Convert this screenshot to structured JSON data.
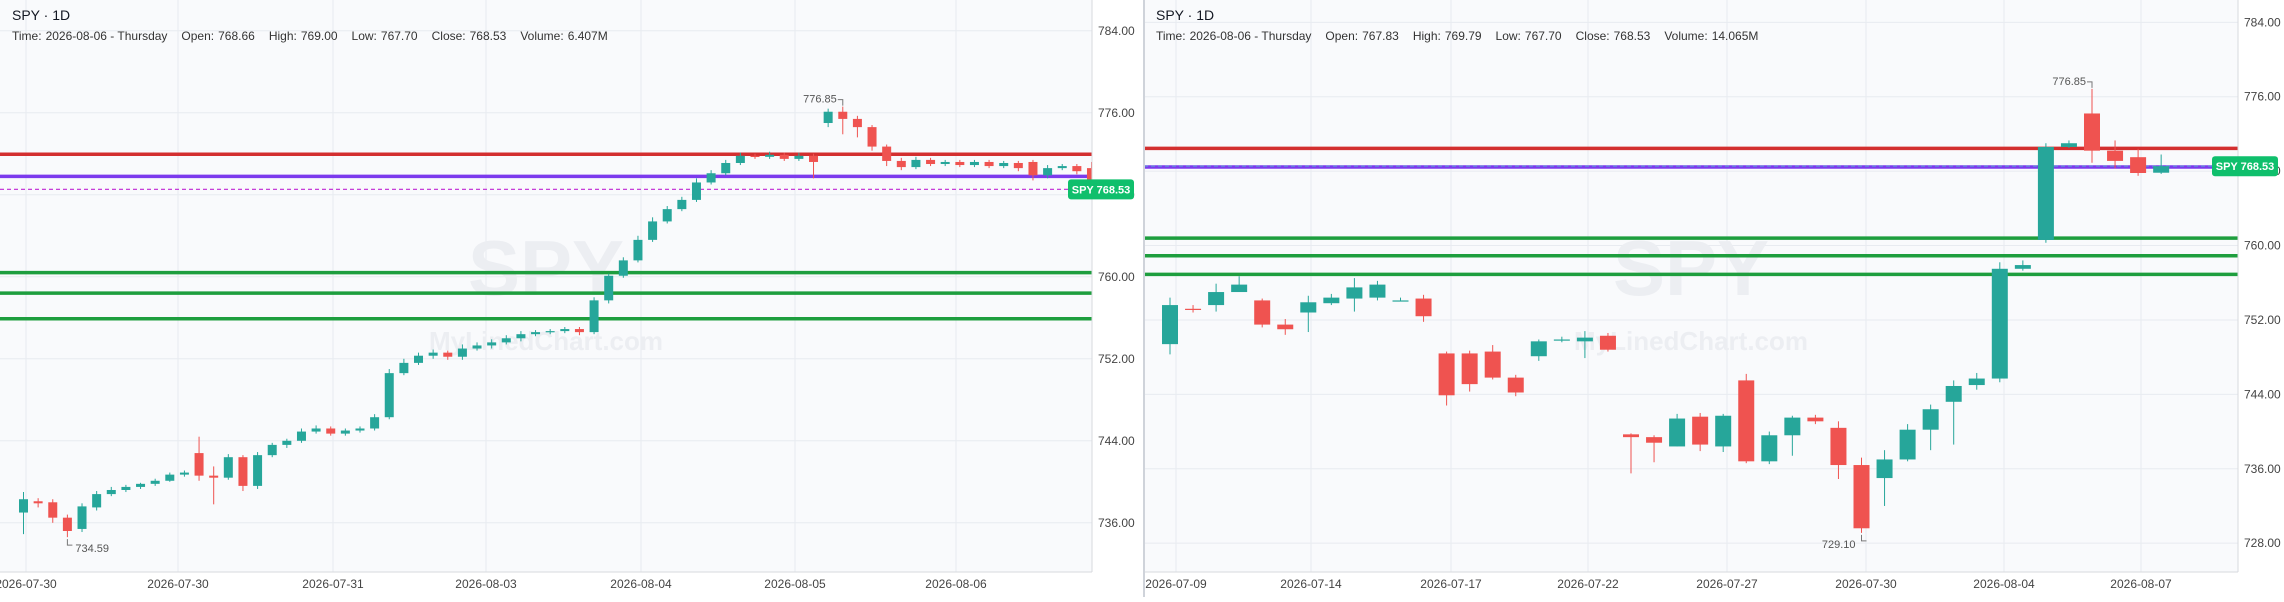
{
  "charts": [
    {
      "symbol_title": "SPY · 1D",
      "info": {
        "time_label": "Time:",
        "time": "2026-08-06 - Thursday",
        "open_label": "Open:",
        "open": "768.66",
        "high_label": "High:",
        "high": "769.00",
        "low_label": "Low:",
        "low": "767.70",
        "close_label": "Close:",
        "close": "768.53",
        "volume_label": "Volume:",
        "volume": "6.407M"
      },
      "watermark_symbol": "SPY",
      "watermark_brand": "MyLinedChart.com",
      "price_tag": "SPY 768.53",
      "hi_label": "776.85",
      "lo_label": "734.59"
    },
    {
      "symbol_title": "SPY · 1D",
      "info": {
        "time_label": "Time:",
        "time": "2026-08-06 - Thursday",
        "open_label": "Open:",
        "open": "767.83",
        "high_label": "High:",
        "high": "769.79",
        "low_label": "Low:",
        "low": "767.70",
        "close_label": "Close:",
        "close": "768.53",
        "volume_label": "Volume:",
        "volume": "14.065M"
      },
      "watermark_symbol": "SPY",
      "watermark_brand": "MyLinedChart.com",
      "price_tag": "SPY 768.53",
      "hi_label": "776.85",
      "lo_label": "729.10"
    }
  ],
  "colors": {
    "up": "#26a69a",
    "down": "#ef5350",
    "red_line": "#d32f2f",
    "green_line": "#1e9e3e",
    "purple_line": "#7c3aed",
    "grid": "#e8ebf0",
    "tag_bg": "#0fbf6c",
    "text": "#131722",
    "axis_text": "#444"
  },
  "chart_data": [
    {
      "type": "candlestick",
      "title": "SPY · 1D",
      "x_tick_labels": [
        "2026-07-30",
        "2026-07-30",
        "2026-07-31",
        "2026-08-03",
        "2026-08-04",
        "2026-08-05",
        "2026-08-06"
      ],
      "y_ticks": [
        736,
        744,
        752,
        760,
        768,
        776,
        784
      ],
      "y_tick_labels": [
        "736.00",
        "744.00",
        "752.00",
        "760.00",
        "768.00",
        "776.00",
        "784.00"
      ],
      "ylim": [
        731.2,
        787.0
      ],
      "candles": [
        [
          737.0,
          738.3,
          734.9,
          739.0
        ],
        [
          738.1,
          737.9,
          737.5,
          738.4
        ],
        [
          738.0,
          736.5,
          736.0,
          738.3
        ],
        [
          736.5,
          735.2,
          734.6,
          736.8
        ],
        [
          735.4,
          737.6,
          735.1,
          737.9
        ],
        [
          737.5,
          738.8,
          737.2,
          739.1
        ],
        [
          738.8,
          739.2,
          738.6,
          739.5
        ],
        [
          739.2,
          739.5,
          739.0,
          739.7
        ],
        [
          739.5,
          739.8,
          739.3,
          739.9
        ],
        [
          739.8,
          740.1,
          739.6,
          740.3
        ],
        [
          740.1,
          740.7,
          740.0,
          740.9
        ],
        [
          740.7,
          740.9,
          740.5,
          741.1
        ],
        [
          742.8,
          740.6,
          740.1,
          744.4
        ],
        [
          740.6,
          740.4,
          737.8,
          741.5
        ],
        [
          740.4,
          742.4,
          740.2,
          742.7
        ],
        [
          742.4,
          739.6,
          739.1,
          742.6
        ],
        [
          739.6,
          742.6,
          739.3,
          742.9
        ],
        [
          742.6,
          743.6,
          742.4,
          743.8
        ],
        [
          743.6,
          744.0,
          743.3,
          744.2
        ],
        [
          744.0,
          744.9,
          743.8,
          745.2
        ],
        [
          744.9,
          745.2,
          744.7,
          745.5
        ],
        [
          745.2,
          744.7,
          744.5,
          745.4
        ],
        [
          744.7,
          745.0,
          744.5,
          745.2
        ],
        [
          745.0,
          745.2,
          744.8,
          745.4
        ],
        [
          745.2,
          746.3,
          745.0,
          746.6
        ],
        [
          746.3,
          750.6,
          746.1,
          751.0
        ],
        [
          750.6,
          751.6,
          750.4,
          752.0
        ],
        [
          751.6,
          752.3,
          751.4,
          752.6
        ],
        [
          752.3,
          752.6,
          752.0,
          752.9
        ],
        [
          752.6,
          752.2,
          751.9,
          752.8
        ],
        [
          752.2,
          753.0,
          751.9,
          753.4
        ],
        [
          753.0,
          753.3,
          752.8,
          753.6
        ],
        [
          753.3,
          753.6,
          753.0,
          753.9
        ],
        [
          753.6,
          754.0,
          753.4,
          754.3
        ],
        [
          754.0,
          754.4,
          753.7,
          754.7
        ],
        [
          754.4,
          754.6,
          754.2,
          754.8
        ],
        [
          754.6,
          754.7,
          754.4,
          754.9
        ],
        [
          754.7,
          754.9,
          754.5,
          755.1
        ],
        [
          754.9,
          754.6,
          754.3,
          755.1
        ],
        [
          754.6,
          757.7,
          754.4,
          758.0
        ],
        [
          757.7,
          760.1,
          757.4,
          760.3
        ],
        [
          760.1,
          761.6,
          759.9,
          761.9
        ],
        [
          761.6,
          763.6,
          761.4,
          764.0
        ],
        [
          763.6,
          765.4,
          763.4,
          765.8
        ],
        [
          765.4,
          766.6,
          765.2,
          766.9
        ],
        [
          766.6,
          767.5,
          766.4,
          767.8
        ],
        [
          767.5,
          769.2,
          767.3,
          769.6
        ],
        [
          769.2,
          770.1,
          769.0,
          770.4
        ],
        [
          770.1,
          771.1,
          769.9,
          771.4
        ],
        [
          771.1,
          771.8,
          770.9,
          772.1
        ],
        [
          771.8,
          771.7,
          771.5,
          772.0
        ],
        [
          771.7,
          771.9,
          771.5,
          772.2
        ],
        [
          771.9,
          771.5,
          771.3,
          772.1
        ],
        [
          771.5,
          771.8,
          771.3,
          772.1
        ],
        [
          771.8,
          771.2,
          769.6,
          772.0
        ],
        [
          775.0,
          776.1,
          774.6,
          776.4
        ],
        [
          776.1,
          775.4,
          773.9,
          776.6
        ],
        [
          775.4,
          774.6,
          773.6,
          775.7
        ],
        [
          774.6,
          772.7,
          772.3,
          774.8
        ],
        [
          772.7,
          771.3,
          770.8,
          772.9
        ],
        [
          771.3,
          770.7,
          770.4,
          771.6
        ],
        [
          770.7,
          771.4,
          770.5,
          771.7
        ],
        [
          771.4,
          771.0,
          770.8,
          771.6
        ],
        [
          771.0,
          771.2,
          770.8,
          771.4
        ],
        [
          771.2,
          770.9,
          770.7,
          771.4
        ],
        [
          770.9,
          771.2,
          770.7,
          771.4
        ],
        [
          771.2,
          770.8,
          770.6,
          771.4
        ],
        [
          770.8,
          771.1,
          770.6,
          771.3
        ],
        [
          771.1,
          770.6,
          770.3,
          771.3
        ],
        [
          771.2,
          769.9,
          769.4,
          771.4
        ],
        [
          769.9,
          770.6,
          769.6,
          770.9
        ],
        [
          770.6,
          770.8,
          770.4,
          771.0
        ],
        [
          770.8,
          770.3,
          770.0,
          771.0
        ],
        [
          770.6,
          769.2,
          768.6,
          771.2
        ],
        [
          769.2,
          768.0,
          767.6,
          769.4
        ],
        [
          768.0,
          767.7,
          767.1,
          768.2
        ],
        [
          767.7,
          768.5,
          767.4,
          768.8
        ],
        [
          768.5,
          767.7,
          767.2,
          768.8
        ],
        [
          767.7,
          768.6,
          767.5,
          769.0
        ],
        [
          768.6,
          768.2,
          767.9,
          768.9
        ],
        [
          768.2,
          768.9,
          768.0,
          769.2
        ],
        [
          768.9,
          768.7,
          768.4,
          769.1
        ],
        [
          768.7,
          768.8,
          768.5,
          769.0
        ],
        [
          768.8,
          768.4,
          768.2,
          769.0
        ],
        [
          768.4,
          768.2,
          767.9,
          768.6
        ],
        [
          768.66,
          768.53,
          767.7,
          769.0
        ]
      ],
      "horizontal_levels": [
        {
          "price": 771.95,
          "color": "red"
        },
        {
          "price": 769.8,
          "color": "purple"
        },
        {
          "price": 768.53,
          "color": "purple-dashed"
        },
        {
          "price": 760.4,
          "color": "green"
        },
        {
          "price": 758.4,
          "color": "green"
        },
        {
          "price": 755.9,
          "color": "green"
        }
      ],
      "annotations": [
        {
          "text": "776.85",
          "price": 776.85
        },
        {
          "text": "734.59",
          "price": 734.59
        }
      ],
      "grid": true
    },
    {
      "type": "candlestick",
      "title": "SPY · 1D",
      "x_tick_labels": [
        "2026-07-09",
        "2026-07-14",
        "2026-07-17",
        "2026-07-22",
        "2026-07-27",
        "2026-07-30",
        "2026-08-04",
        "2026-08-07"
      ],
      "y_ticks": [
        728,
        736,
        744,
        752,
        760,
        768,
        776,
        784
      ],
      "y_tick_labels": [
        "728.00",
        "736.00",
        "744.00",
        "752.00",
        "760.00",
        "768.00",
        "776.00",
        "784.00"
      ],
      "ylim": [
        724.9,
        786.4
      ],
      "candles": [
        [
          749.4,
          753.6,
          748.3,
          754.4
        ],
        [
          753.2,
          753.1,
          752.8,
          753.6
        ],
        [
          753.6,
          755.0,
          752.9,
          755.9
        ],
        [
          755.0,
          755.8,
          755.2,
          756.7
        ],
        [
          754.1,
          751.5,
          751.2,
          754.3
        ],
        [
          751.5,
          751.0,
          750.4,
          752.1
        ],
        [
          752.8,
          753.9,
          750.7,
          754.6
        ],
        [
          753.8,
          754.4,
          753.6,
          754.8
        ],
        [
          754.3,
          755.5,
          752.9,
          756.5
        ],
        [
          754.4,
          755.8,
          754.1,
          756.2
        ],
        [
          754.1,
          754.1,
          754.0,
          754.4
        ],
        [
          754.3,
          752.4,
          751.8,
          754.7
        ],
        [
          748.4,
          743.9,
          742.8,
          748.6
        ],
        [
          748.4,
          745.1,
          744.3,
          748.7
        ],
        [
          748.6,
          745.8,
          745.6,
          749.3
        ],
        [
          745.8,
          744.2,
          743.8,
          746.1
        ],
        [
          748.1,
          749.7,
          747.6,
          749.9
        ],
        [
          749.9,
          749.9,
          749.6,
          750.2
        ],
        [
          749.7,
          750.1,
          747.9,
          750.8
        ],
        [
          750.3,
          748.8,
          748.6,
          750.6
        ],
        [
          739.7,
          739.4,
          735.5,
          739.8
        ],
        [
          739.4,
          738.8,
          736.7,
          739.6
        ],
        [
          738.4,
          741.4,
          738.4,
          741.9
        ],
        [
          741.6,
          738.6,
          737.9,
          742.0
        ],
        [
          738.4,
          741.7,
          737.8,
          741.9
        ],
        [
          745.5,
          736.8,
          736.6,
          746.2
        ],
        [
          736.8,
          739.6,
          736.5,
          740.0
        ],
        [
          739.6,
          741.5,
          737.4,
          741.7
        ],
        [
          741.5,
          741.1,
          740.8,
          741.8
        ],
        [
          740.4,
          736.4,
          734.9,
          741.1
        ],
        [
          736.4,
          729.6,
          729.1,
          737.2
        ],
        [
          735.0,
          737.0,
          732.0,
          738.0
        ],
        [
          737.0,
          740.2,
          736.8,
          740.8
        ],
        [
          740.2,
          742.4,
          738.0,
          742.9
        ],
        [
          743.2,
          744.9,
          738.6,
          745.5
        ],
        [
          745.0,
          745.7,
          744.5,
          746.3
        ],
        [
          745.7,
          757.5,
          745.3,
          758.2
        ],
        [
          757.5,
          757.9,
          757.3,
          758.4
        ],
        [
          760.6,
          770.6,
          760.3,
          771.0
        ],
        [
          770.6,
          771.0,
          770.5,
          771.3
        ],
        [
          774.2,
          770.2,
          768.9,
          776.85
        ],
        [
          770.2,
          769.1,
          768.3,
          771.3
        ],
        [
          769.5,
          767.8,
          767.5,
          770.4
        ],
        [
          767.83,
          768.53,
          767.7,
          769.79
        ]
      ],
      "horizontal_levels": [
        {
          "price": 770.45,
          "color": "red"
        },
        {
          "price": 768.45,
          "color": "purple"
        },
        {
          "price": 768.53,
          "color": "blue-dashed"
        },
        {
          "price": 760.8,
          "color": "green"
        },
        {
          "price": 758.9,
          "color": "green"
        },
        {
          "price": 756.9,
          "color": "green"
        }
      ],
      "annotations": [
        {
          "text": "776.85",
          "price": 776.85
        },
        {
          "text": "729.10",
          "price": 729.1
        }
      ],
      "grid": true
    }
  ]
}
